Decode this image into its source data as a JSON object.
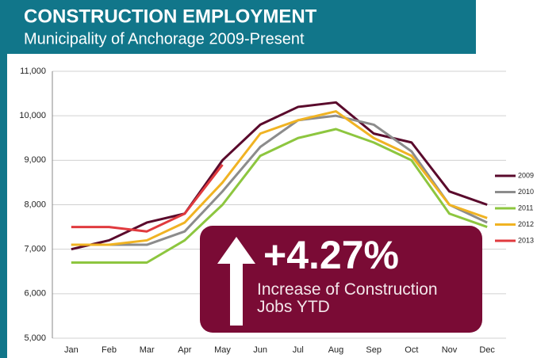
{
  "chart_data": {
    "type": "line",
    "title": "CONSTRUCTION EMPLOYMENT",
    "subtitle": "Municipality of Anchorage 2009-Present",
    "categories": [
      "Jan",
      "Feb",
      "Mar",
      "Apr",
      "May",
      "Jun",
      "Jul",
      "Aug",
      "Sep",
      "Oct",
      "Nov",
      "Dec"
    ],
    "series": [
      {
        "name": "2009",
        "color": "#5a0a2c",
        "values": [
          7000,
          7200,
          7600,
          7800,
          9000,
          9800,
          10200,
          10300,
          9600,
          9400,
          8300,
          8000
        ]
      },
      {
        "name": "2010",
        "color": "#8c8c8c",
        "values": [
          7100,
          7100,
          7100,
          7400,
          8300,
          9300,
          9900,
          10000,
          9800,
          9200,
          8000,
          7600
        ]
      },
      {
        "name": "2011",
        "color": "#8dc63f",
        "values": [
          6700,
          6700,
          6700,
          7200,
          8000,
          9100,
          9500,
          9700,
          9400,
          9000,
          7800,
          7500
        ]
      },
      {
        "name": "2012",
        "color": "#f0b323",
        "values": [
          7100,
          7100,
          7200,
          7600,
          8500,
          9600,
          9900,
          10100,
          9500,
          9100,
          8000,
          7700
        ]
      },
      {
        "name": "2013",
        "color": "#e03a3e",
        "values": [
          7500,
          7500,
          7400,
          7800,
          8900,
          null,
          null,
          null,
          null,
          null,
          null,
          null
        ]
      }
    ],
    "ylim": [
      5000,
      11000
    ],
    "yticks": [
      {
        "value": 5000,
        "label": "5,000"
      },
      {
        "value": 6000,
        "label": "6,000"
      },
      {
        "value": 7000,
        "label": "7,000"
      },
      {
        "value": 8000,
        "label": "8,000"
      },
      {
        "value": 9000,
        "label": "9,000"
      },
      {
        "value": 10000,
        "label": "10,000"
      },
      {
        "value": 11000,
        "label": "11,000"
      }
    ],
    "grid": true,
    "legend": "right",
    "annotation": {
      "headline": "+4.27%",
      "caption": "Increase of Construction Jobs YTD"
    }
  }
}
